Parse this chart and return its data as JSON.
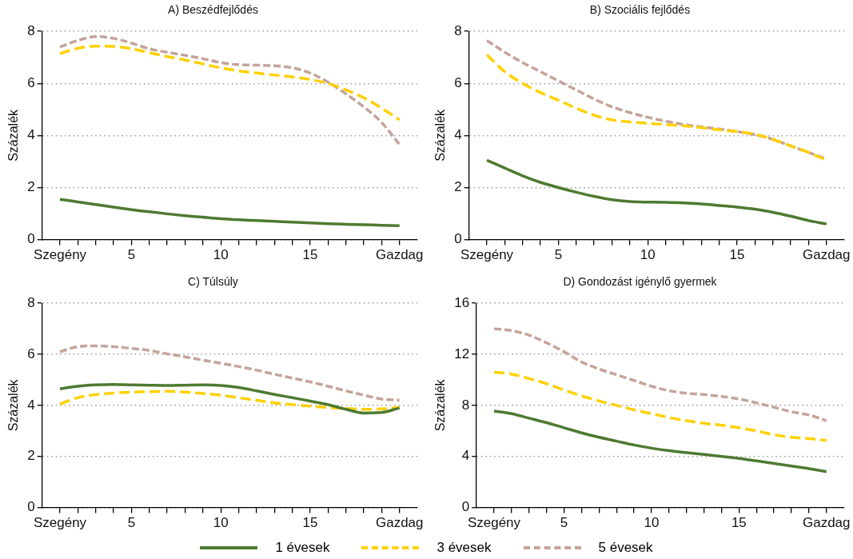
{
  "chart_data": [
    {
      "type": "line",
      "title": "A) Beszédfejlődés",
      "ylabel": "Százalék",
      "x": [
        1,
        2,
        3,
        4,
        5,
        6,
        7,
        8,
        9,
        10,
        11,
        12,
        13,
        14,
        15,
        16,
        17,
        18,
        19,
        20
      ],
      "xlim": [
        0,
        21
      ],
      "xticks": [
        {
          "value": 1,
          "label": "Szegény"
        },
        {
          "value": 2,
          "label": null
        },
        {
          "value": 3,
          "label": null
        },
        {
          "value": 4,
          "label": null
        },
        5,
        {
          "value": 6,
          "label": null
        },
        {
          "value": 7,
          "label": null
        },
        {
          "value": 8,
          "label": null
        },
        {
          "value": 9,
          "label": null
        },
        10,
        {
          "value": 11,
          "label": null
        },
        {
          "value": 12,
          "label": null
        },
        {
          "value": 13,
          "label": null
        },
        {
          "value": 14,
          "label": null
        },
        15,
        {
          "value": 16,
          "label": null
        },
        {
          "value": 17,
          "label": null
        },
        {
          "value": 18,
          "label": null
        },
        {
          "value": 19,
          "label": null
        },
        {
          "value": 20,
          "label": "Gazdag"
        }
      ],
      "ylim": [
        0,
        8
      ],
      "yticks": [
        0,
        2,
        4,
        6,
        8
      ],
      "grid": "y",
      "legend": "bottom",
      "marker": "none",
      "series": [
        {
          "name": "1 évesek",
          "color": "#4e7a31",
          "line_style": "solid",
          "values": [
            1.55,
            1.45,
            1.35,
            1.25,
            1.15,
            1.07,
            0.99,
            0.92,
            0.86,
            0.8,
            0.76,
            0.73,
            0.7,
            0.67,
            0.64,
            0.61,
            0.59,
            0.57,
            0.55,
            0.53
          ]
        },
        {
          "name": "3 évesek",
          "color": "#ffd000",
          "line_style": "dashed",
          "values": [
            7.15,
            7.35,
            7.43,
            7.42,
            7.33,
            7.18,
            7.03,
            6.9,
            6.75,
            6.6,
            6.48,
            6.4,
            6.32,
            6.25,
            6.15,
            6,
            5.75,
            5.45,
            5.05,
            4.6
          ]
        },
        {
          "name": "5 évesek",
          "color": "#c4a49c",
          "line_style": "dashed",
          "values": [
            7.4,
            7.65,
            7.8,
            7.73,
            7.55,
            7.33,
            7.2,
            7.08,
            6.95,
            6.8,
            6.72,
            6.7,
            6.68,
            6.6,
            6.4,
            6.05,
            5.6,
            5.1,
            4.5,
            3.65
          ]
        }
      ]
    },
    {
      "type": "line",
      "title": "B) Szociális fejlődés",
      "ylabel": "Százalék",
      "x": [
        1,
        2,
        3,
        4,
        5,
        6,
        7,
        8,
        9,
        10,
        11,
        12,
        13,
        14,
        15,
        16,
        17,
        18,
        19,
        20
      ],
      "xlim": [
        0,
        21
      ],
      "xticks": [
        {
          "value": 1,
          "label": "Szegény"
        },
        {
          "value": 2,
          "label": null
        },
        {
          "value": 3,
          "label": null
        },
        {
          "value": 4,
          "label": null
        },
        5,
        {
          "value": 6,
          "label": null
        },
        {
          "value": 7,
          "label": null
        },
        {
          "value": 8,
          "label": null
        },
        {
          "value": 9,
          "label": null
        },
        10,
        {
          "value": 11,
          "label": null
        },
        {
          "value": 12,
          "label": null
        },
        {
          "value": 13,
          "label": null
        },
        {
          "value": 14,
          "label": null
        },
        15,
        {
          "value": 16,
          "label": null
        },
        {
          "value": 17,
          "label": null
        },
        {
          "value": 18,
          "label": null
        },
        {
          "value": 19,
          "label": null
        },
        {
          "value": 20,
          "label": "Gazdag"
        }
      ],
      "ylim": [
        0,
        8
      ],
      "yticks": [
        0,
        2,
        4,
        6,
        8
      ],
      "grid": "y",
      "legend": false,
      "marker": "none",
      "series": [
        {
          "color": "#4e7a31",
          "line_style": "solid",
          "values": [
            3.05,
            2.75,
            2.45,
            2.2,
            2,
            1.82,
            1.66,
            1.53,
            1.46,
            1.44,
            1.43,
            1.41,
            1.37,
            1.31,
            1.25,
            1.17,
            1.05,
            0.9,
            0.73,
            0.6
          ]
        },
        {
          "color": "#ffd000",
          "line_style": "dashed",
          "values": [
            7.1,
            6.45,
            6,
            5.65,
            5.35,
            5.05,
            4.78,
            4.6,
            4.52,
            4.47,
            4.42,
            4.37,
            4.3,
            4.22,
            4.15,
            4.05,
            3.85,
            3.6,
            3.35,
            3.05
          ]
        },
        {
          "color": "#c4a49c",
          "line_style": "dashed",
          "values": [
            7.65,
            7.2,
            6.8,
            6.45,
            6.1,
            5.75,
            5.4,
            5.1,
            4.88,
            4.7,
            4.55,
            4.42,
            4.33,
            4.25,
            4.15,
            4.03,
            3.85,
            3.6,
            3.35,
            3.1
          ]
        }
      ]
    },
    {
      "type": "line",
      "title": "C) Túlsúly",
      "ylabel": "Százalék",
      "x": [
        1,
        2,
        3,
        4,
        5,
        6,
        7,
        8,
        9,
        10,
        11,
        12,
        13,
        14,
        15,
        16,
        17,
        18,
        19,
        20
      ],
      "xlim": [
        0,
        21
      ],
      "xticks": [
        {
          "value": 1,
          "label": "Szegény"
        },
        {
          "value": 2,
          "label": null
        },
        {
          "value": 3,
          "label": null
        },
        {
          "value": 4,
          "label": null
        },
        5,
        {
          "value": 6,
          "label": null
        },
        {
          "value": 7,
          "label": null
        },
        {
          "value": 8,
          "label": null
        },
        {
          "value": 9,
          "label": null
        },
        10,
        {
          "value": 11,
          "label": null
        },
        {
          "value": 12,
          "label": null
        },
        {
          "value": 13,
          "label": null
        },
        {
          "value": 14,
          "label": null
        },
        15,
        {
          "value": 16,
          "label": null
        },
        {
          "value": 17,
          "label": null
        },
        {
          "value": 18,
          "label": null
        },
        {
          "value": 19,
          "label": null
        },
        {
          "value": 20,
          "label": "Gazdag"
        }
      ],
      "ylim": [
        0,
        8
      ],
      "yticks": [
        0,
        2,
        4,
        6,
        8
      ],
      "grid": "y",
      "legend": false,
      "marker": "none",
      "series": [
        {
          "color": "#4e7a31",
          "line_style": "solid",
          "values": [
            4.65,
            4.75,
            4.8,
            4.82,
            4.8,
            4.79,
            4.78,
            4.79,
            4.8,
            4.78,
            4.7,
            4.57,
            4.43,
            4.3,
            4.17,
            4.03,
            3.85,
            3.7,
            3.72,
            3.9
          ]
        },
        {
          "color": "#ffd000",
          "line_style": "dashed",
          "values": [
            4.05,
            4.3,
            4.42,
            4.48,
            4.52,
            4.54,
            4.55,
            4.52,
            4.47,
            4.4,
            4.3,
            4.2,
            4.1,
            4.03,
            3.97,
            3.92,
            3.88,
            3.85,
            3.86,
            3.93
          ]
        },
        {
          "color": "#c4a49c",
          "line_style": "dashed",
          "values": [
            6.1,
            6.3,
            6.33,
            6.3,
            6.23,
            6.15,
            6.02,
            5.9,
            5.77,
            5.65,
            5.52,
            5.38,
            5.22,
            5.07,
            4.92,
            4.75,
            4.57,
            4.4,
            4.25,
            4.2
          ]
        }
      ]
    },
    {
      "type": "line",
      "title": "D) Gondozást igénylő gyermek",
      "ylabel": "Százalék",
      "x": [
        1,
        2,
        3,
        4,
        5,
        6,
        7,
        8,
        9,
        10,
        11,
        12,
        13,
        14,
        15,
        16,
        17,
        18,
        19,
        20
      ],
      "xlim": [
        0,
        21
      ],
      "xticks": [
        {
          "value": 1,
          "label": "Szegény"
        },
        {
          "value": 2,
          "label": null
        },
        {
          "value": 3,
          "label": null
        },
        {
          "value": 4,
          "label": null
        },
        5,
        {
          "value": 6,
          "label": null
        },
        {
          "value": 7,
          "label": null
        },
        {
          "value": 8,
          "label": null
        },
        {
          "value": 9,
          "label": null
        },
        10,
        {
          "value": 11,
          "label": null
        },
        {
          "value": 12,
          "label": null
        },
        {
          "value": 13,
          "label": null
        },
        {
          "value": 14,
          "label": null
        },
        15,
        {
          "value": 16,
          "label": null
        },
        {
          "value": 17,
          "label": null
        },
        {
          "value": 18,
          "label": null
        },
        {
          "value": 19,
          "label": null
        },
        {
          "value": 20,
          "label": "Gazdag"
        }
      ],
      "ylim": [
        0,
        16
      ],
      "yticks": [
        0,
        4,
        8,
        12,
        16
      ],
      "grid": "y",
      "legend": false,
      "marker": "none",
      "series": [
        {
          "color": "#4e7a31",
          "line_style": "solid",
          "values": [
            7.55,
            7.35,
            7,
            6.65,
            6.25,
            5.85,
            5.5,
            5.2,
            4.9,
            4.65,
            4.45,
            4.3,
            4.15,
            4,
            3.85,
            3.65,
            3.45,
            3.25,
            3.05,
            2.8
          ]
        },
        {
          "color": "#ffd000",
          "line_style": "dashed",
          "values": [
            10.6,
            10.45,
            10.1,
            9.7,
            9.2,
            8.75,
            8.35,
            8,
            7.65,
            7.35,
            7.05,
            6.8,
            6.6,
            6.45,
            6.25,
            6,
            5.7,
            5.5,
            5.4,
            5.25
          ]
        },
        {
          "color": "#c4a49c",
          "line_style": "dashed",
          "values": [
            14,
            13.85,
            13.5,
            12.9,
            12.2,
            11.4,
            10.85,
            10.4,
            9.95,
            9.5,
            9.15,
            8.95,
            8.85,
            8.7,
            8.5,
            8.2,
            7.85,
            7.5,
            7.25,
            6.8
          ]
        }
      ]
    }
  ]
}
